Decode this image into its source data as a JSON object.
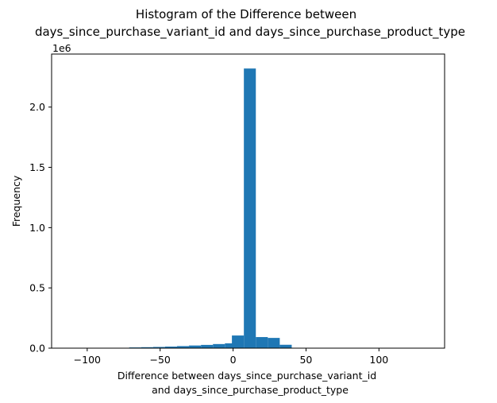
{
  "chart_data": {
    "type": "bar",
    "title_lines": [
      "Histogram of the Difference between",
      "days_since_purchase_variant_id and days_since_purchase_product_type"
    ],
    "xlabel_lines": [
      "Difference between days_since_purchase_variant_id",
      "and days_since_purchase_product_type"
    ],
    "ylabel": "Frequency",
    "y_multiplier_label": "1e6",
    "xlim": [
      -124.4,
      145
    ],
    "ylim": [
      0,
      2440000
    ],
    "xticks": [
      -100,
      -50,
      0,
      50,
      100
    ],
    "yticks": [
      {
        "value": 0,
        "label": "0.0"
      },
      {
        "value": 500000,
        "label": "0.5"
      },
      {
        "value": 1000000,
        "label": "1.0"
      },
      {
        "value": 1500000,
        "label": "1.5"
      },
      {
        "value": 2000000,
        "label": "2.0"
      }
    ],
    "grid": false,
    "bar_color": "#1f77b4",
    "bin_width": 8.2,
    "bins": [
      {
        "x0": -112.2,
        "count": 1000
      },
      {
        "x0": -104.0,
        "count": 1000
      },
      {
        "x0": -95.8,
        "count": 1500
      },
      {
        "x0": -87.6,
        "count": 2000
      },
      {
        "x0": -79.4,
        "count": 3000
      },
      {
        "x0": -71.2,
        "count": 6000
      },
      {
        "x0": -63.0,
        "count": 8000
      },
      {
        "x0": -54.8,
        "count": 10000
      },
      {
        "x0": -46.6,
        "count": 13000
      },
      {
        "x0": -38.4,
        "count": 17000
      },
      {
        "x0": -30.2,
        "count": 22000
      },
      {
        "x0": -22.0,
        "count": 27000
      },
      {
        "x0": -13.8,
        "count": 34000
      },
      {
        "x0": -5.6,
        "count": 40000
      },
      {
        "x0": -0.8,
        "count": 105000
      },
      {
        "x0": 7.4,
        "count": 2320000
      },
      {
        "x0": 15.6,
        "count": 92000
      },
      {
        "x0": 23.8,
        "count": 85000
      },
      {
        "x0": 32.0,
        "count": 28000
      },
      {
        "x0": 40.2,
        "count": 2000
      },
      {
        "x0": 48.4,
        "count": 1000
      },
      {
        "x0": 56.6,
        "count": 500
      }
    ]
  }
}
